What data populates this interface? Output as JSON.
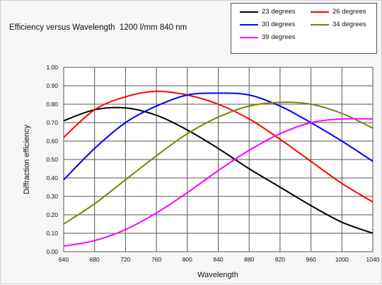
{
  "chart_data": {
    "type": "line",
    "title": "Efficiency versus Wavelength  1200 l/mm 840 nm",
    "xlabel": "Wavelength",
    "ylabel": "Diffraction efficiency",
    "xlim": [
      640,
      1040
    ],
    "ylim": [
      0,
      1.0
    ],
    "xticks": [
      "640",
      "680",
      "720",
      "760",
      "800",
      "840",
      "880",
      "920",
      "960",
      "1000",
      "1040"
    ],
    "yticks": [
      "0.00",
      "0.10",
      "0.20",
      "0.30",
      "0.40",
      "0.50",
      "0.60",
      "0.70",
      "0.80",
      "0.90",
      "1.00"
    ],
    "grid": true,
    "legend_position": "top-right",
    "x": [
      640,
      680,
      720,
      760,
      800,
      840,
      880,
      920,
      960,
      1000,
      1040
    ],
    "series": [
      {
        "name": "23 degrees",
        "color": "#000000",
        "values": [
          0.71,
          0.77,
          0.78,
          0.74,
          0.66,
          0.56,
          0.45,
          0.35,
          0.25,
          0.16,
          0.1
        ]
      },
      {
        "name": "26 degrees",
        "color": "#ff0000",
        "values": [
          0.62,
          0.77,
          0.84,
          0.87,
          0.85,
          0.8,
          0.72,
          0.61,
          0.49,
          0.37,
          0.27
        ]
      },
      {
        "name": "30 degrees",
        "color": "#0000ff",
        "values": [
          0.39,
          0.56,
          0.7,
          0.79,
          0.85,
          0.86,
          0.85,
          0.79,
          0.7,
          0.6,
          0.49
        ]
      },
      {
        "name": "34 degrees",
        "color": "#808000",
        "values": [
          0.15,
          0.26,
          0.39,
          0.52,
          0.64,
          0.73,
          0.79,
          0.81,
          0.8,
          0.75,
          0.67
        ]
      },
      {
        "name": "39 degrees",
        "color": "#ff00ff",
        "values": [
          0.03,
          0.06,
          0.12,
          0.21,
          0.32,
          0.44,
          0.55,
          0.64,
          0.7,
          0.72,
          0.72
        ]
      }
    ]
  }
}
